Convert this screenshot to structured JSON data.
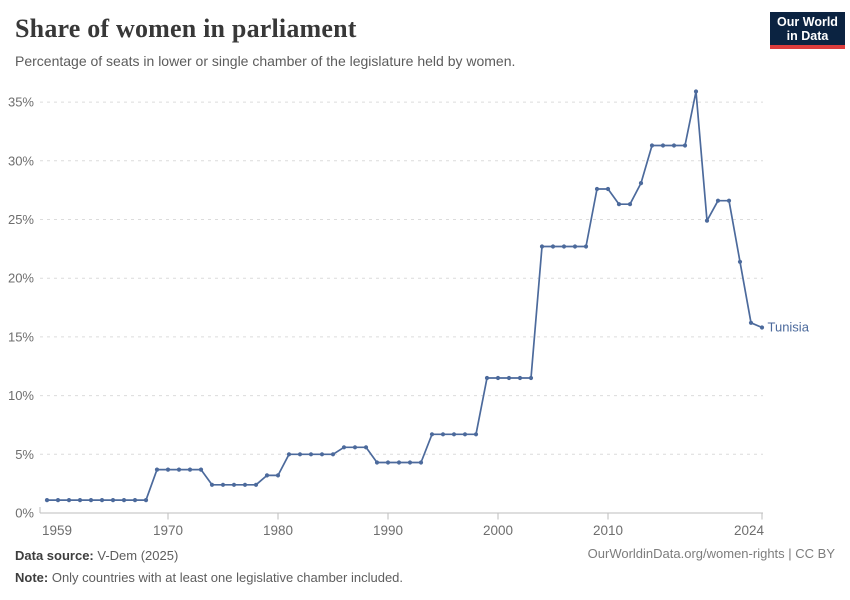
{
  "header": {
    "title": "Share of women in parliament",
    "subtitle": "Percentage of seats in lower or single chamber of the legislature held by women.",
    "logo": {
      "line1": "Our World",
      "line2": "in Data"
    }
  },
  "chart_data": {
    "type": "line",
    "title": "Share of women in parliament",
    "xlabel": "",
    "ylabel": "",
    "x_ticks": [
      1959,
      1970,
      1980,
      1990,
      2000,
      2010,
      2024
    ],
    "y_ticks": [
      0,
      5,
      10,
      15,
      20,
      25,
      30,
      35
    ],
    "y_tick_suffix": "%",
    "xlim": [
      1959,
      2024
    ],
    "ylim": [
      0,
      36
    ],
    "grid": "horizontal-dashed",
    "legend_position": "end-of-line",
    "series": [
      {
        "name": "Tunisia",
        "color": "#4C6A9C",
        "points": [
          [
            1959,
            1.1
          ],
          [
            1960,
            1.1
          ],
          [
            1961,
            1.1
          ],
          [
            1962,
            1.1
          ],
          [
            1963,
            1.1
          ],
          [
            1964,
            1.1
          ],
          [
            1965,
            1.1
          ],
          [
            1966,
            1.1
          ],
          [
            1967,
            1.1
          ],
          [
            1968,
            1.1
          ],
          [
            1969,
            3.7
          ],
          [
            1970,
            3.7
          ],
          [
            1971,
            3.7
          ],
          [
            1972,
            3.7
          ],
          [
            1973,
            3.7
          ],
          [
            1974,
            2.4
          ],
          [
            1975,
            2.4
          ],
          [
            1976,
            2.4
          ],
          [
            1977,
            2.4
          ],
          [
            1978,
            2.4
          ],
          [
            1979,
            3.2
          ],
          [
            1980,
            3.2
          ],
          [
            1981,
            5.0
          ],
          [
            1982,
            5.0
          ],
          [
            1983,
            5.0
          ],
          [
            1984,
            5.0
          ],
          [
            1985,
            5.0
          ],
          [
            1986,
            5.6
          ],
          [
            1987,
            5.6
          ],
          [
            1988,
            5.6
          ],
          [
            1989,
            4.3
          ],
          [
            1990,
            4.3
          ],
          [
            1991,
            4.3
          ],
          [
            1992,
            4.3
          ],
          [
            1993,
            4.3
          ],
          [
            1994,
            6.7
          ],
          [
            1995,
            6.7
          ],
          [
            1996,
            6.7
          ],
          [
            1997,
            6.7
          ],
          [
            1998,
            6.7
          ],
          [
            1999,
            11.5
          ],
          [
            2000,
            11.5
          ],
          [
            2001,
            11.5
          ],
          [
            2002,
            11.5
          ],
          [
            2003,
            11.5
          ],
          [
            2004,
            22.7
          ],
          [
            2005,
            22.7
          ],
          [
            2006,
            22.7
          ],
          [
            2007,
            22.7
          ],
          [
            2008,
            22.7
          ],
          [
            2009,
            27.6
          ],
          [
            2010,
            27.6
          ],
          [
            2011,
            26.3
          ],
          [
            2012,
            26.3
          ],
          [
            2013,
            28.1
          ],
          [
            2014,
            31.3
          ],
          [
            2015,
            31.3
          ],
          [
            2016,
            31.3
          ],
          [
            2017,
            31.3
          ],
          [
            2018,
            35.9
          ],
          [
            2019,
            24.9
          ],
          [
            2020,
            26.6
          ],
          [
            2021,
            26.6
          ],
          [
            2022,
            21.4
          ],
          [
            2023,
            16.2
          ],
          [
            2024,
            15.8
          ]
        ]
      }
    ]
  },
  "footer": {
    "source_label": "Data source:",
    "source_value": " V-Dem (2025)",
    "note_label": "Note:",
    "note_value": " Only countries with at least one legislative chamber included.",
    "link": "OurWorldinData.org/women-rights | CC BY"
  },
  "colors": {
    "line": "#4C6A9C",
    "grid": "#dcdcdc",
    "axis": "#bdbdbd",
    "tick_label": "#6e6e6e",
    "logo_bg": "#0b2341",
    "logo_accent": "#dc3d3d"
  }
}
